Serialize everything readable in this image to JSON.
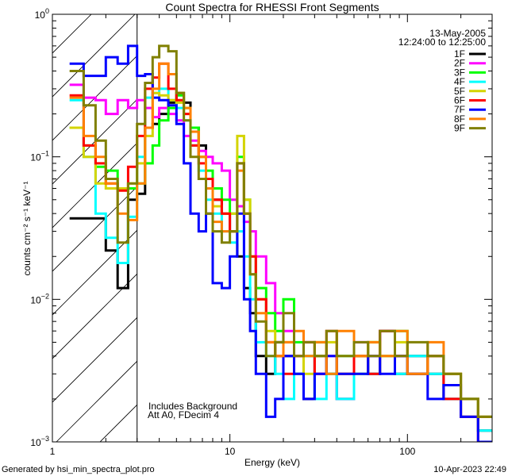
{
  "chart_data": {
    "type": "line",
    "title": "Count Spectra for RHESSI Front Segments",
    "xlabel": "Energy (keV)",
    "ylabel": "counts cm⁻² s⁻¹ keV⁻¹",
    "xscale": "log",
    "yscale": "log",
    "xlim": [
      1,
      300
    ],
    "ylim": [
      0.001,
      1
    ],
    "xticks": [
      {
        "value": 1,
        "label": "1"
      },
      {
        "value": 10,
        "label": "10"
      },
      {
        "value": 100,
        "label": "100"
      }
    ],
    "yticks": [
      {
        "value": 1,
        "base": "10",
        "exp": "0"
      },
      {
        "value": 0.1,
        "base": "10",
        "exp": "−1"
      },
      {
        "value": 0.01,
        "base": "10",
        "exp": "−2"
      },
      {
        "value": 0.001,
        "base": "10",
        "exp": "−3"
      }
    ],
    "shaded_region": {
      "from": 1,
      "to": 3,
      "style": "hatched"
    },
    "date": "13-May-2005",
    "time_range": "12:24:00 to 12:25:00",
    "annotations": [
      "Includes Background",
      "Att A0, FDecim 4"
    ],
    "legend_position": "top-right",
    "energy_edges": [
      1.25,
      1.5,
      1.75,
      2,
      2.33,
      2.67,
      3,
      3.33,
      3.67,
      4,
      4.5,
      5,
      5.5,
      6,
      6.67,
      7.33,
      8,
      9,
      10,
      11,
      12,
      13,
      14,
      16,
      18,
      20,
      23,
      26,
      30,
      35,
      40,
      50,
      60,
      70,
      85,
      100,
      130,
      160,
      200,
      250,
      300
    ],
    "series": [
      {
        "name": "1F",
        "color": "#000000",
        "values": [
          0.037,
          0.037,
          0.037,
          0.022,
          0.012,
          0.05,
          0.055,
          0.16,
          0.17,
          0.2,
          0.24,
          0.28,
          0.24,
          0.16,
          0.12,
          0.07,
          0.05,
          0.04,
          0.03,
          0.02,
          0.012,
          0.008,
          0.004,
          0.003,
          0.005,
          0.004,
          0.003,
          0.002,
          0.004,
          0.003,
          0.002,
          0.004,
          0.003,
          0.006,
          0.003,
          0.004,
          0.003,
          0.002,
          0.0015,
          0.0012
        ]
      },
      {
        "name": "2F",
        "color": "#ff00ff",
        "values": [
          0.32,
          0.26,
          0.25,
          0.2,
          0.25,
          0.22,
          0.25,
          0.22,
          0.19,
          0.22,
          0.2,
          0.18,
          0.14,
          0.13,
          0.11,
          0.1,
          0.09,
          0.08,
          0.05,
          0.045,
          0.035,
          0.03,
          0.02,
          0.013,
          0.008,
          0.006,
          0.004,
          0.005,
          0.003,
          0.004,
          0.002,
          0.005,
          0.004,
          0.006,
          0.004,
          0.003,
          0.004,
          0.003,
          0.002,
          0.0015
        ]
      },
      {
        "name": "3F",
        "color": "#00ff00",
        "values": [
          0.16,
          0.12,
          0.085,
          0.08,
          0.06,
          0.06,
          0.065,
          0.09,
          0.12,
          0.18,
          0.22,
          0.27,
          0.22,
          0.16,
          0.1,
          0.08,
          0.06,
          0.05,
          0.04,
          0.1,
          0.05,
          0.02,
          0.012,
          0.008,
          0.006,
          0.01,
          0.005,
          0.004,
          0.005,
          0.003,
          0.004,
          0.003,
          0.005,
          0.004,
          0.006,
          0.003,
          0.004,
          0.003,
          0.002,
          0.0015
        ]
      },
      {
        "name": "4F",
        "color": "#00ffff",
        "values": [
          0.25,
          0.1,
          0.04,
          0.027,
          0.018,
          0.038,
          0.1,
          0.26,
          0.28,
          0.3,
          0.25,
          0.22,
          0.18,
          0.12,
          0.08,
          0.05,
          0.04,
          0.03,
          0.025,
          0.03,
          0.02,
          0.01,
          0.005,
          0.004,
          0.003,
          0.002,
          0.003,
          0.004,
          0.002,
          0.003,
          0.002,
          0.004,
          0.003,
          0.004,
          0.003,
          0.004,
          0.003,
          0.002,
          0.002,
          0.0012
        ]
      },
      {
        "name": "5F",
        "color": "#d4d400",
        "values": [
          0.16,
          0.1,
          0.065,
          0.06,
          0.06,
          0.065,
          0.09,
          0.14,
          0.28,
          0.27,
          0.25,
          0.24,
          0.2,
          0.15,
          0.1,
          0.06,
          0.045,
          0.04,
          0.04,
          0.14,
          0.05,
          0.02,
          0.01,
          0.006,
          0.004,
          0.005,
          0.004,
          0.003,
          0.004,
          0.005,
          0.003,
          0.004,
          0.005,
          0.004,
          0.005,
          0.003,
          0.004,
          0.003,
          0.002,
          0.0015
        ]
      },
      {
        "name": "6F",
        "color": "#ff0000",
        "values": [
          0.27,
          0.12,
          0.09,
          0.065,
          0.058,
          0.085,
          0.14,
          0.3,
          0.36,
          0.45,
          0.3,
          0.25,
          0.2,
          0.12,
          0.09,
          0.07,
          0.05,
          0.04,
          0.03,
          0.09,
          0.04,
          0.02,
          0.01,
          0.005,
          0.004,
          0.003,
          0.004,
          0.005,
          0.003,
          0.006,
          0.003,
          0.004,
          0.003,
          0.006,
          0.004,
          0.003,
          0.004,
          0.002,
          0.0015,
          0.001
        ]
      },
      {
        "name": "7F",
        "color": "#0000ff",
        "values": [
          0.45,
          0.37,
          0.37,
          0.5,
          0.45,
          0.6,
          0.37,
          0.38,
          0.26,
          0.25,
          0.23,
          0.17,
          0.09,
          0.04,
          0.03,
          0.04,
          0.013,
          0.012,
          0.02,
          0.04,
          0.01,
          0.006,
          0.003,
          0.0015,
          0.002,
          0.004,
          0.003,
          0.002,
          0.003,
          0.004,
          0.003,
          0.003,
          0.004,
          0.003,
          0.004,
          0.003,
          0.002,
          0.0025,
          0.0015,
          0.001
        ]
      },
      {
        "name": "8F",
        "color": "#ff8000",
        "values": [
          0.26,
          0.14,
          0.1,
          0.065,
          0.04,
          0.036,
          0.065,
          0.16,
          0.3,
          0.45,
          0.38,
          0.28,
          0.22,
          0.15,
          0.1,
          0.06,
          0.035,
          0.03,
          0.03,
          0.08,
          0.04,
          0.015,
          0.008,
          0.005,
          0.004,
          0.005,
          0.006,
          0.004,
          0.005,
          0.003,
          0.006,
          0.004,
          0.005,
          0.004,
          0.006,
          0.003,
          0.005,
          0.003,
          0.002,
          0.0015
        ]
      },
      {
        "name": "9F",
        "color": "#808000",
        "values": [
          0.4,
          0.23,
          0.13,
          0.07,
          0.025,
          0.065,
          0.17,
          0.33,
          0.5,
          0.6,
          0.55,
          0.28,
          0.18,
          0.1,
          0.07,
          0.04,
          0.03,
          0.025,
          0.03,
          0.09,
          0.04,
          0.015,
          0.007,
          0.004,
          0.005,
          0.008,
          0.004,
          0.005,
          0.004,
          0.006,
          0.004,
          0.005,
          0.004,
          0.006,
          0.004,
          0.005,
          0.004,
          0.003,
          0.002,
          0.0015
        ]
      }
    ]
  },
  "footer": {
    "generated_by": "Generated by hsi_min_spectra_plot.pro",
    "timestamp": "10-Apr-2023 22:49"
  }
}
